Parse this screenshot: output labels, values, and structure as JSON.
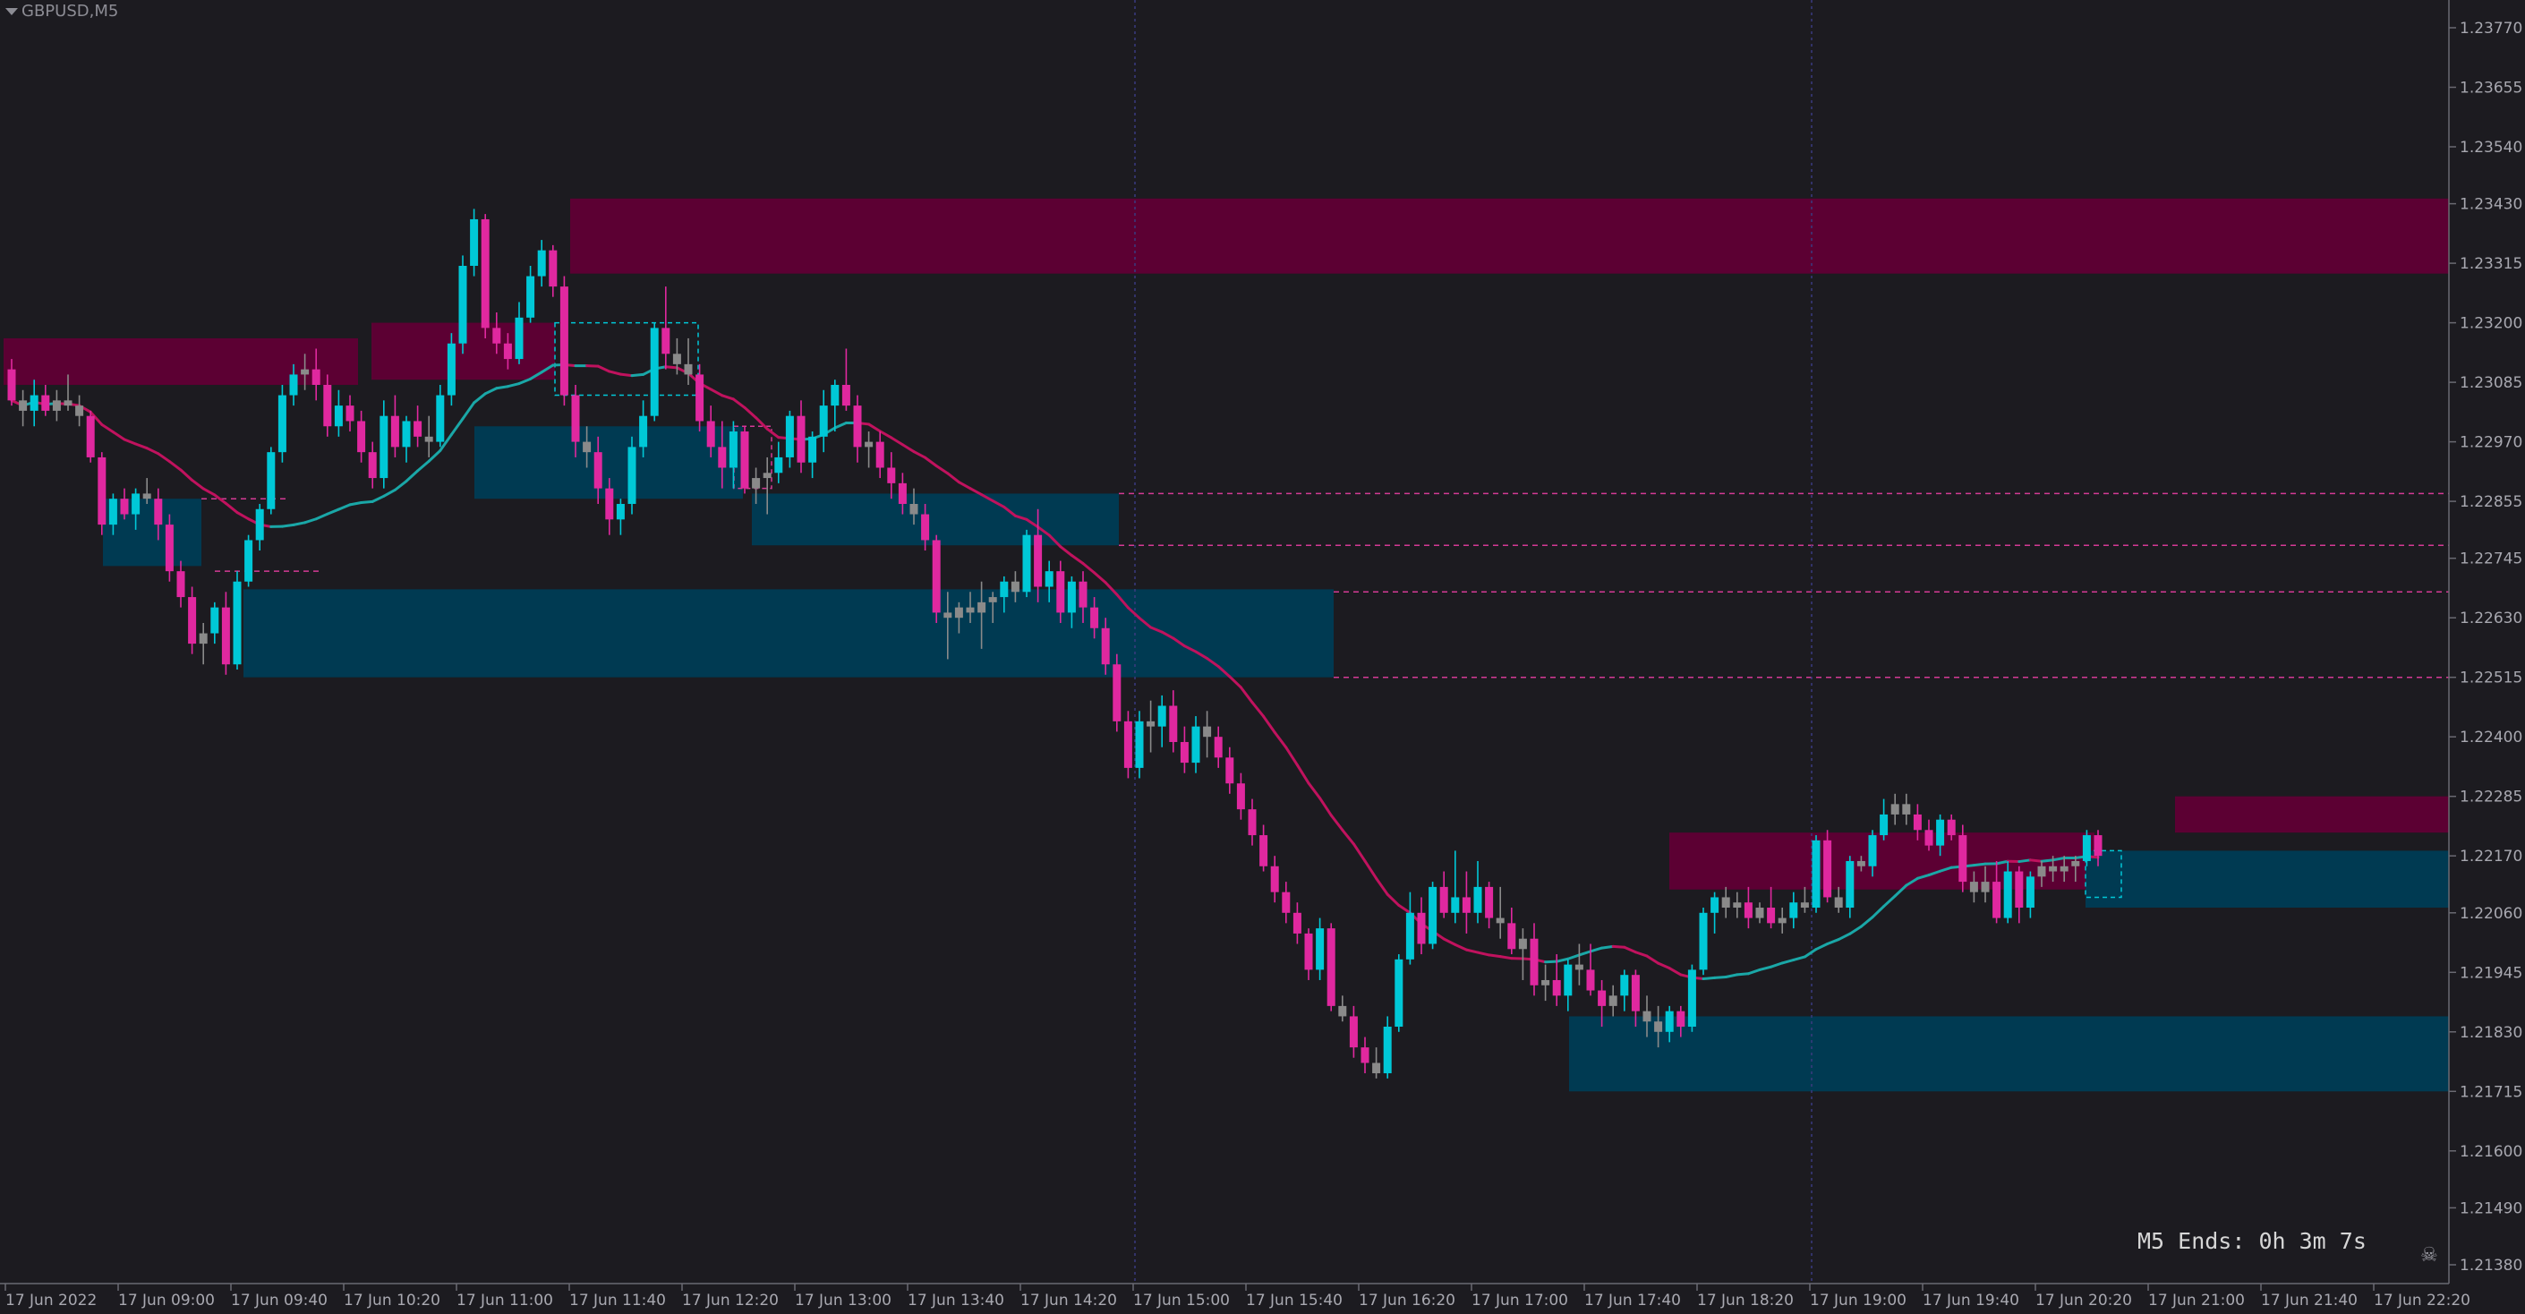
{
  "window": {
    "symbol_label": "GBPUSD,M5"
  },
  "timer": {
    "text": "M5 Ends: 0h 3m 7s"
  },
  "icons": {
    "collapse": "triangle-down-icon",
    "corner": "skull-crossbones-icon"
  },
  "colors": {
    "background": "#1c1b20",
    "bull_candle": "#00c8d7",
    "bear_candle": "#e0289f",
    "neutral_candle": "#8a8a8a",
    "supply_zone": "#5c0033",
    "demand_zone": "#003a52",
    "ma_bear": "#c0125e",
    "ma_bull": "#1aa7a7",
    "level_line": "#d43a95",
    "separator": "#3a3a80"
  },
  "chart_data": {
    "type": "candlestick",
    "y_ticks": [
      "1.23770",
      "1.23655",
      "1.23540",
      "1.23430",
      "1.23315",
      "1.23200",
      "1.23085",
      "1.22970",
      "1.22855",
      "1.22745",
      "1.22630",
      "1.22515",
      "1.22400",
      "1.22285",
      "1.22170",
      "1.22060",
      "1.21945",
      "1.21830",
      "1.21715",
      "1.21600",
      "1.21490",
      "1.21380"
    ],
    "x_ticks": [
      "17 Jun 2022",
      "17 Jun 09:00",
      "17 Jun 09:40",
      "17 Jun 10:20",
      "17 Jun 11:00",
      "17 Jun 11:40",
      "17 Jun 12:20",
      "17 Jun 13:00",
      "17 Jun 13:40",
      "17 Jun 14:20",
      "17 Jun 15:00",
      "17 Jun 15:40",
      "17 Jun 16:20",
      "17 Jun 17:00",
      "17 Jun 17:40",
      "17 Jun 18:20",
      "17 Jun 19:00",
      "17 Jun 19:40",
      "17 Jun 20:20",
      "17 Jun 21:00",
      "17 Jun 21:40",
      "17 Jun 22:20"
    ],
    "candles_from_first": 1,
    "candles": [
      [
        1.2311,
        1.2313,
        1.2304,
        1.2305
      ],
      [
        1.2305,
        1.2307,
        1.23,
        1.2303
      ],
      [
        1.2303,
        1.2309,
        1.23,
        1.2306
      ],
      [
        1.2306,
        1.2308,
        1.2302,
        1.2303
      ],
      [
        1.2303,
        1.2307,
        1.2301,
        1.2305
      ],
      [
        1.2305,
        1.231,
        1.2303,
        1.2304
      ],
      [
        1.2304,
        1.2306,
        1.23,
        1.2302
      ],
      [
        1.2302,
        1.2303,
        1.2293,
        1.2294
      ],
      [
        1.2294,
        1.2295,
        1.2279,
        1.2281
      ],
      [
        1.2281,
        1.2287,
        1.2279,
        1.2286
      ],
      [
        1.2286,
        1.2288,
        1.2282,
        1.2283
      ],
      [
        1.2283,
        1.2288,
        1.228,
        1.2287
      ],
      [
        1.2287,
        1.229,
        1.2285,
        1.2286
      ],
      [
        1.2286,
        1.2288,
        1.2278,
        1.2281
      ],
      [
        1.2281,
        1.2283,
        1.227,
        1.2272
      ],
      [
        1.2272,
        1.2274,
        1.2265,
        1.2267
      ],
      [
        1.2267,
        1.2269,
        1.2256,
        1.2258
      ],
      [
        1.2258,
        1.2262,
        1.2254,
        1.226
      ],
      [
        1.226,
        1.2266,
        1.2258,
        1.2265
      ],
      [
        1.2265,
        1.2268,
        1.2252,
        1.2254
      ],
      [
        1.2254,
        1.2272,
        1.2253,
        1.227
      ],
      [
        1.227,
        1.2279,
        1.2269,
        1.2278
      ],
      [
        1.2278,
        1.2285,
        1.2276,
        1.2284
      ],
      [
        1.2284,
        1.2296,
        1.2283,
        1.2295
      ],
      [
        1.2295,
        1.2308,
        1.2293,
        1.2306
      ],
      [
        1.2306,
        1.2312,
        1.2304,
        1.231
      ],
      [
        1.231,
        1.2314,
        1.2307,
        1.2311
      ],
      [
        1.2311,
        1.2315,
        1.2305,
        1.2308
      ],
      [
        1.2308,
        1.231,
        1.2298,
        1.23
      ],
      [
        1.23,
        1.2307,
        1.2298,
        1.2304
      ],
      [
        1.2304,
        1.2306,
        1.2299,
        1.2301
      ],
      [
        1.2301,
        1.2303,
        1.2293,
        1.2295
      ],
      [
        1.2295,
        1.2297,
        1.2288,
        1.229
      ],
      [
        1.229,
        1.2305,
        1.2288,
        1.2302
      ],
      [
        1.2302,
        1.2306,
        1.2294,
        1.2296
      ],
      [
        1.2296,
        1.2302,
        1.2293,
        1.2301
      ],
      [
        1.2301,
        1.2304,
        1.2296,
        1.2298
      ],
      [
        1.2298,
        1.2302,
        1.2294,
        1.2297
      ],
      [
        1.2297,
        1.2308,
        1.2296,
        1.2306
      ],
      [
        1.2306,
        1.2318,
        1.2304,
        1.2316
      ],
      [
        1.2316,
        1.2333,
        1.2314,
        1.2331
      ],
      [
        1.2331,
        1.2342,
        1.2329,
        1.234
      ],
      [
        1.234,
        1.2341,
        1.2317,
        1.2319
      ],
      [
        1.2319,
        1.2322,
        1.2314,
        1.2316
      ],
      [
        1.2316,
        1.2318,
        1.2311,
        1.2313
      ],
      [
        1.2313,
        1.2324,
        1.2312,
        1.2321
      ],
      [
        1.2321,
        1.2331,
        1.232,
        1.2329
      ],
      [
        1.2329,
        1.2336,
        1.2327,
        1.2334
      ],
      [
        1.2334,
        1.2335,
        1.2325,
        1.2327
      ],
      [
        1.2327,
        1.2329,
        1.2304,
        1.2306
      ],
      [
        1.2306,
        1.2308,
        1.2294,
        1.2297
      ],
      [
        1.2297,
        1.23,
        1.2292,
        1.2295
      ],
      [
        1.2295,
        1.2298,
        1.2285,
        1.2288
      ],
      [
        1.2288,
        1.229,
        1.2279,
        1.2282
      ],
      [
        1.2282,
        1.2286,
        1.2279,
        1.2285
      ],
      [
        1.2285,
        1.2298,
        1.2283,
        1.2296
      ],
      [
        1.2296,
        1.2305,
        1.2294,
        1.2302
      ],
      [
        1.2302,
        1.232,
        1.2301,
        1.2319
      ],
      [
        1.2319,
        1.2327,
        1.2311,
        1.2314
      ],
      [
        1.2314,
        1.2317,
        1.231,
        1.2312
      ],
      [
        1.2312,
        1.2317,
        1.2308,
        1.231
      ],
      [
        1.231,
        1.2312,
        1.2299,
        1.2301
      ],
      [
        1.2301,
        1.2304,
        1.2294,
        1.2296
      ],
      [
        1.2296,
        1.2301,
        1.2288,
        1.2292
      ],
      [
        1.2292,
        1.2301,
        1.2288,
        1.2299
      ],
      [
        1.2299,
        1.23,
        1.2287,
        1.2288
      ],
      [
        1.2288,
        1.2292,
        1.2285,
        1.229
      ],
      [
        1.229,
        1.2294,
        1.2283,
        1.2291
      ],
      [
        1.2291,
        1.2297,
        1.2289,
        1.2294
      ],
      [
        1.2294,
        1.2303,
        1.2292,
        1.2302
      ],
      [
        1.2302,
        1.2305,
        1.2291,
        1.2293
      ],
      [
        1.2293,
        1.2299,
        1.229,
        1.2298
      ],
      [
        1.2298,
        1.2307,
        1.2295,
        1.2304
      ],
      [
        1.2304,
        1.2309,
        1.2299,
        1.2308
      ],
      [
        1.2308,
        1.2315,
        1.2303,
        1.2304
      ],
      [
        1.2304,
        1.2306,
        1.2293,
        1.2296
      ],
      [
        1.2296,
        1.2299,
        1.2292,
        1.2297
      ],
      [
        1.2297,
        1.2299,
        1.229,
        1.2292
      ],
      [
        1.2292,
        1.2295,
        1.2286,
        1.2289
      ],
      [
        1.2289,
        1.2291,
        1.2283,
        1.2285
      ],
      [
        1.2285,
        1.2288,
        1.2281,
        1.2283
      ],
      [
        1.2283,
        1.2285,
        1.2276,
        1.2278
      ],
      [
        1.2278,
        1.2279,
        1.2262,
        1.2264
      ],
      [
        1.2264,
        1.2268,
        1.2255,
        1.2263
      ],
      [
        1.2263,
        1.2266,
        1.226,
        1.2265
      ],
      [
        1.2265,
        1.2268,
        1.2262,
        1.2264
      ],
      [
        1.2264,
        1.227,
        1.2257,
        1.2266
      ],
      [
        1.2266,
        1.2268,
        1.2262,
        1.2267
      ],
      [
        1.2267,
        1.2271,
        1.2264,
        1.227
      ],
      [
        1.227,
        1.2272,
        1.2266,
        1.2268
      ],
      [
        1.2268,
        1.228,
        1.2267,
        1.2279
      ],
      [
        1.2279,
        1.2284,
        1.2266,
        1.2269
      ],
      [
        1.2269,
        1.2274,
        1.2266,
        1.2272
      ],
      [
        1.2272,
        1.2274,
        1.2262,
        1.2264
      ],
      [
        1.2264,
        1.2271,
        1.2261,
        1.227
      ],
      [
        1.227,
        1.2272,
        1.2262,
        1.2265
      ],
      [
        1.2265,
        1.2267,
        1.2259,
        1.2261
      ],
      [
        1.2261,
        1.2263,
        1.2252,
        1.2254
      ],
      [
        1.2254,
        1.2256,
        1.2241,
        1.2243
      ],
      [
        1.2243,
        1.2245,
        1.2232,
        1.2234
      ],
      [
        1.2234,
        1.2245,
        1.2232,
        1.2243
      ],
      [
        1.2243,
        1.2247,
        1.2237,
        1.2242
      ],
      [
        1.2242,
        1.2248,
        1.2238,
        1.2246
      ],
      [
        1.2246,
        1.2249,
        1.2237,
        1.2239
      ],
      [
        1.2239,
        1.2242,
        1.2233,
        1.2235
      ],
      [
        1.2235,
        1.2244,
        1.2233,
        1.2242
      ],
      [
        1.2242,
        1.2245,
        1.2236,
        1.224
      ],
      [
        1.224,
        1.2242,
        1.2234,
        1.2236
      ],
      [
        1.2236,
        1.2238,
        1.2229,
        1.2231
      ],
      [
        1.2231,
        1.2233,
        1.2224,
        1.2226
      ],
      [
        1.2226,
        1.2228,
        1.2219,
        1.2221
      ],
      [
        1.2221,
        1.2223,
        1.2214,
        1.2215
      ],
      [
        1.2215,
        1.2217,
        1.2208,
        1.221
      ],
      [
        1.221,
        1.2212,
        1.2204,
        1.2206
      ],
      [
        1.2206,
        1.2208,
        1.22,
        1.2202
      ],
      [
        1.2202,
        1.2203,
        1.2193,
        1.2195
      ],
      [
        1.2195,
        1.2205,
        1.2193,
        1.2203
      ],
      [
        1.2203,
        1.2204,
        1.2187,
        1.2188
      ],
      [
        1.2188,
        1.219,
        1.2185,
        1.2186
      ],
      [
        1.2186,
        1.2188,
        1.2178,
        1.218
      ],
      [
        1.218,
        1.2182,
        1.2175,
        1.2177
      ],
      [
        1.2177,
        1.218,
        1.2174,
        1.2175
      ],
      [
        1.2175,
        1.2186,
        1.2174,
        1.2184
      ],
      [
        1.2184,
        1.2198,
        1.2183,
        1.2197
      ],
      [
        1.2197,
        1.221,
        1.2196,
        1.2206
      ],
      [
        1.2206,
        1.2209,
        1.2198,
        1.22
      ],
      [
        1.22,
        1.2212,
        1.2199,
        1.2211
      ],
      [
        1.2211,
        1.2214,
        1.2205,
        1.2206
      ],
      [
        1.2206,
        1.2218,
        1.2204,
        1.2209
      ],
      [
        1.2209,
        1.2214,
        1.2202,
        1.2206
      ],
      [
        1.2206,
        1.2216,
        1.2204,
        1.2211
      ],
      [
        1.2211,
        1.2212,
        1.2203,
        1.2205
      ],
      [
        1.2205,
        1.2211,
        1.2201,
        1.2204
      ],
      [
        1.2204,
        1.2207,
        1.2198,
        1.2199
      ],
      [
        1.2199,
        1.2203,
        1.2193,
        1.2201
      ],
      [
        1.2201,
        1.2204,
        1.219,
        1.2192
      ],
      [
        1.2192,
        1.2196,
        1.2189,
        1.2193
      ],
      [
        1.2193,
        1.2198,
        1.2188,
        1.219
      ],
      [
        1.219,
        1.2197,
        1.2187,
        1.2196
      ],
      [
        1.2196,
        1.22,
        1.2192,
        1.2195
      ],
      [
        1.2195,
        1.22,
        1.219,
        1.2191
      ],
      [
        1.2191,
        1.2193,
        1.2184,
        1.2188
      ],
      [
        1.2188,
        1.2192,
        1.2186,
        1.219
      ],
      [
        1.219,
        1.2195,
        1.2187,
        1.2194
      ],
      [
        1.2194,
        1.2195,
        1.2184,
        1.2187
      ],
      [
        1.2187,
        1.219,
        1.2182,
        1.2185
      ],
      [
        1.2185,
        1.2188,
        1.218,
        1.2183
      ],
      [
        1.2183,
        1.2188,
        1.2181,
        1.2187
      ],
      [
        1.2187,
        1.2188,
        1.2182,
        1.2184
      ],
      [
        1.2184,
        1.2196,
        1.2183,
        1.2195
      ],
      [
        1.2195,
        1.2207,
        1.2194,
        1.2206
      ],
      [
        1.2206,
        1.221,
        1.2202,
        1.2209
      ],
      [
        1.2209,
        1.2211,
        1.2205,
        1.2207
      ],
      [
        1.2207,
        1.221,
        1.2205,
        1.2208
      ],
      [
        1.2208,
        1.2211,
        1.2203,
        1.2205
      ],
      [
        1.2205,
        1.2208,
        1.2204,
        1.2207
      ],
      [
        1.2207,
        1.2211,
        1.2203,
        1.2204
      ],
      [
        1.2204,
        1.2207,
        1.2202,
        1.2205
      ],
      [
        1.2205,
        1.221,
        1.2203,
        1.2208
      ],
      [
        1.2208,
        1.2211,
        1.2206,
        1.2207
      ],
      [
        1.2207,
        1.2221,
        1.2206,
        1.222
      ],
      [
        1.222,
        1.2222,
        1.2208,
        1.2209
      ],
      [
        1.2209,
        1.2211,
        1.2206,
        1.2207
      ],
      [
        1.2207,
        1.2217,
        1.2205,
        1.2216
      ],
      [
        1.2216,
        1.2217,
        1.2214,
        1.2215
      ],
      [
        1.2215,
        1.2222,
        1.2213,
        1.2221
      ],
      [
        1.2221,
        1.2228,
        1.222,
        1.2225
      ],
      [
        1.2225,
        1.2229,
        1.2223,
        1.2227
      ],
      [
        1.2227,
        1.2229,
        1.2223,
        1.2225
      ],
      [
        1.2225,
        1.2227,
        1.222,
        1.2222
      ],
      [
        1.2222,
        1.2224,
        1.2218,
        1.2219
      ],
      [
        1.2219,
        1.2225,
        1.2217,
        1.2224
      ],
      [
        1.2224,
        1.2225,
        1.222,
        1.2221
      ],
      [
        1.2221,
        1.2223,
        1.221,
        1.2212
      ],
      [
        1.2212,
        1.2214,
        1.2208,
        1.221
      ],
      [
        1.221,
        1.2215,
        1.2208,
        1.2212
      ],
      [
        1.2212,
        1.2216,
        1.2204,
        1.2205
      ],
      [
        1.2205,
        1.2216,
        1.2204,
        1.2214
      ],
      [
        1.2214,
        1.2215,
        1.2204,
        1.2207
      ],
      [
        1.2207,
        1.2214,
        1.2205,
        1.2213
      ],
      [
        1.2213,
        1.2216,
        1.2211,
        1.2215
      ],
      [
        1.2215,
        1.2217,
        1.2212,
        1.2214
      ],
      [
        1.2214,
        1.2217,
        1.2212,
        1.2215
      ],
      [
        1.2215,
        1.2217,
        1.2212,
        1.2216
      ],
      [
        1.2216,
        1.2222,
        1.2215,
        1.2221
      ],
      [
        1.2221,
        1.2222,
        1.2215,
        1.2217
      ]
    ]
  }
}
